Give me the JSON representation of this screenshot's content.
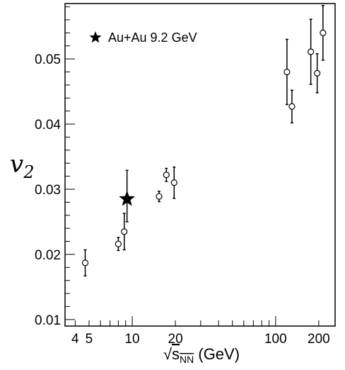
{
  "chart_data": {
    "type": "scatter",
    "xscale": "log",
    "xlim": [
      3.4,
      260
    ],
    "ylim": [
      0.009,
      0.0585
    ],
    "xticks": [
      {
        "value": 4,
        "label": "4"
      },
      {
        "value": 5,
        "label": "5"
      },
      {
        "value": 10,
        "label": "10"
      },
      {
        "value": 20,
        "label": "20"
      },
      {
        "value": 100,
        "label": "100"
      },
      {
        "value": 200,
        "label": "200"
      }
    ],
    "yticks": [
      {
        "value": 0.01,
        "label": "0.01"
      },
      {
        "value": 0.02,
        "label": "0.02"
      },
      {
        "value": 0.03,
        "label": "0.03"
      },
      {
        "value": 0.04,
        "label": "0.04"
      },
      {
        "value": 0.05,
        "label": "0.05"
      }
    ],
    "xlabel_prefix": "√",
    "xlabel_main": "s",
    "xlabel_sub": "NN",
    "xlabel_suffix": " (GeV)",
    "ylabel_main": "v",
    "ylabel_sub": "2",
    "grid": false,
    "legend_position": "top-left",
    "series": [
      {
        "name": "",
        "marker": "open-circle",
        "points": [
          {
            "x": 4.7,
            "y": 0.0187,
            "err": 0.002
          },
          {
            "x": 8.0,
            "y": 0.0216,
            "err": 0.001
          },
          {
            "x": 8.8,
            "y": 0.0235,
            "err": 0.0028
          },
          {
            "x": 15.4,
            "y": 0.0289,
            "err": 0.0008
          },
          {
            "x": 17.3,
            "y": 0.0322,
            "err": 0.001
          },
          {
            "x": 19.6,
            "y": 0.031,
            "err": 0.0024
          },
          {
            "x": 120,
            "y": 0.048,
            "err": 0.005
          },
          {
            "x": 130,
            "y": 0.0427,
            "err": 0.0025
          },
          {
            "x": 176,
            "y": 0.0511,
            "err": 0.005
          },
          {
            "x": 195,
            "y": 0.0478,
            "err": 0.003
          },
          {
            "x": 214,
            "y": 0.054,
            "err": 0.0042
          }
        ]
      },
      {
        "name": "Au+Au 9.2 GeV",
        "marker": "star",
        "points": [
          {
            "x": 9.2,
            "y": 0.0285,
            "err_up": 0.0044,
            "err_down": 0.0035
          }
        ]
      }
    ]
  }
}
